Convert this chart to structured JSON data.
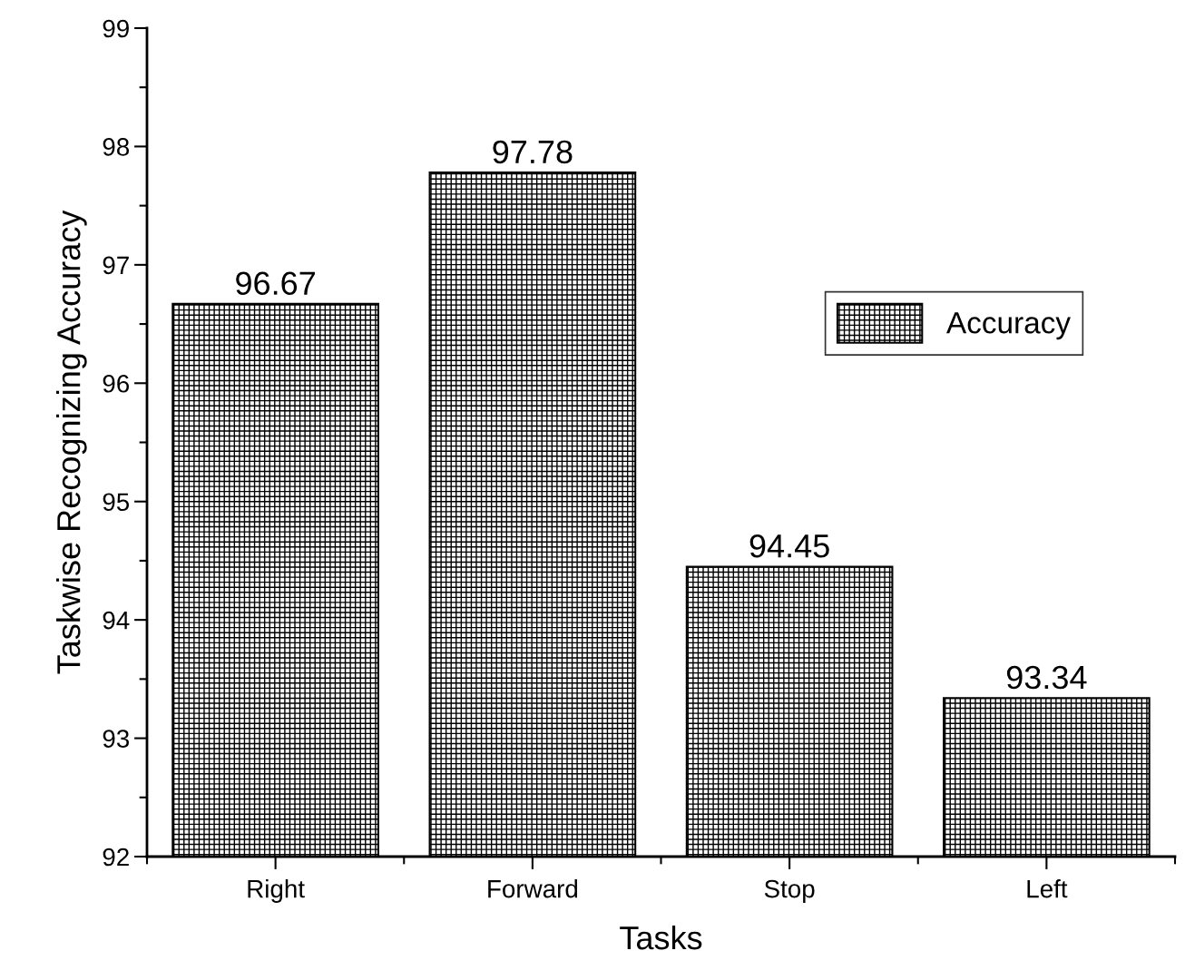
{
  "chart_data": {
    "type": "bar",
    "xlabel": "Tasks",
    "ylabel": "Taskwise Recognizing Accuracy",
    "categories": [
      "Right",
      "Forward",
      "Stop",
      "Left"
    ],
    "series": [
      {
        "name": "Accuracy",
        "color": "#000000",
        "values": [
          96.67,
          97.78,
          94.45,
          93.34
        ]
      }
    ],
    "ylim": [
      92,
      99
    ],
    "yticks": [
      92,
      93,
      94,
      95,
      96,
      97,
      98,
      99
    ],
    "data_labels": true,
    "legend": "top right",
    "grid": false
  }
}
